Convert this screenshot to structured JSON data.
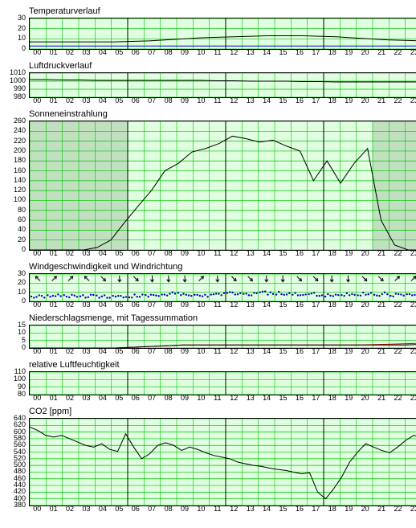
{
  "hours": [
    "00",
    "01",
    "02",
    "03",
    "04",
    "05",
    "06",
    "07",
    "08",
    "09",
    "10",
    "11",
    "12",
    "13",
    "14",
    "15",
    "16",
    "17",
    "18",
    "19",
    "20",
    "21",
    "22",
    "23"
  ],
  "global": {
    "grid_major": "#00c000",
    "grid_minor": "#80e080",
    "bg": "#e0ffe0",
    "shade": "#c0e0c0",
    "sep_x": [
      6,
      12,
      18
    ],
    "sep_color": "#000000",
    "axis_fontsize": 9,
    "title_fontsize": 11,
    "font": "Verdana"
  },
  "panels": [
    {
      "id": "temp",
      "title": "Temperaturverlauf",
      "height": 38,
      "ylim": [
        0,
        30
      ],
      "yticks": [
        0,
        10,
        20,
        30
      ],
      "series": [
        {
          "color": "#000000",
          "width": 1,
          "data": [
            7,
            7,
            7,
            7,
            7,
            7,
            7.5,
            8,
            9,
            10,
            11,
            11.5,
            12,
            12.5,
            13,
            13,
            13,
            12.5,
            12,
            11,
            10,
            9,
            8.5,
            8
          ]
        },
        {
          "color": "#0000d0",
          "width": 1,
          "data": [
            3,
            3,
            3,
            3,
            3,
            3,
            3,
            3,
            3,
            3,
            3,
            3,
            3,
            3,
            3,
            3,
            3,
            3,
            3,
            3,
            3,
            3,
            3,
            3
          ]
        }
      ]
    },
    {
      "id": "press",
      "title": "Luftdruckverlauf",
      "height": 30,
      "ylim": [
        980,
        1010
      ],
      "yticks": [
        980,
        990,
        1000,
        1010
      ],
      "series": [
        {
          "color": "#000000",
          "width": 1,
          "data": [
            1002,
            1002,
            1001.5,
            1001.5,
            1001,
            1001,
            1001,
            1001,
            1001,
            1001,
            1001,
            1000.5,
            1000.5,
            1000,
            1000,
            1000,
            999.5,
            999.5,
            999,
            999,
            999,
            999,
            999,
            999
          ]
        }
      ]
    },
    {
      "id": "solar",
      "title": "Sonneneinstrahlung",
      "height": 160,
      "ylim": [
        0,
        260
      ],
      "yticks": [
        0,
        20,
        40,
        60,
        80,
        100,
        120,
        140,
        160,
        180,
        200,
        220,
        240,
        260
      ],
      "shade": [
        [
          0,
          6
        ],
        [
          21,
          24
        ]
      ],
      "series": [
        {
          "color": "#000000",
          "width": 1,
          "data": [
            0,
            0,
            0,
            0,
            2,
            10,
            45,
            100,
            150,
            185,
            210,
            222,
            225,
            230,
            228,
            225,
            220,
            215,
            195,
            150,
            185,
            60,
            5,
            0
          ],
          "dense": [
            0,
            0,
            0,
            0,
            0,
            5,
            20,
            55,
            88,
            120,
            160,
            175,
            198,
            205,
            215,
            230,
            225,
            218,
            222,
            210,
            200,
            140,
            180,
            135,
            175,
            205,
            60,
            10,
            0,
            0
          ]
        }
      ]
    },
    {
      "id": "wind",
      "title": "Windgeschwindigkeit und Windrichtung",
      "height": 34,
      "ylim": [
        0,
        30
      ],
      "yticks": [
        0,
        10,
        20,
        30
      ],
      "series": [
        {
          "type": "scatter",
          "color": "#0000c0",
          "size": 1.2,
          "data": [
            6,
            7,
            6,
            6,
            5,
            6,
            6,
            7,
            8,
            8,
            7,
            8,
            9,
            8,
            9,
            9,
            8,
            8,
            7,
            7,
            8,
            8,
            7,
            7
          ]
        }
      ],
      "arrows": {
        "y": 25,
        "each_hour": true,
        "color": "#000",
        "dir": [
          315,
          45,
          45,
          315,
          135,
          180,
          135,
          180,
          180,
          180,
          45,
          180,
          135,
          135,
          180,
          180,
          135,
          135,
          180,
          180,
          135,
          135,
          45,
          45
        ]
      }
    },
    {
      "id": "precip",
      "title": "Niederschlagsmenge, mit Tagessummation",
      "height": 28,
      "ylim": [
        0,
        15
      ],
      "yticks": [
        0,
        5,
        10,
        15
      ],
      "series": [
        {
          "color": "#c00000",
          "width": 1,
          "data": [
            0,
            0,
            0,
            0,
            0,
            0,
            0.5,
            1,
            1.5,
            2,
            2,
            2,
            2,
            2,
            2,
            2,
            2,
            2,
            2,
            2,
            2.2,
            2.5,
            2.8,
            3.2
          ]
        },
        {
          "color": "#000000",
          "width": 1,
          "data": [
            0,
            0,
            0,
            0,
            0,
            0,
            0.5,
            1,
            1.5,
            2,
            2,
            2,
            2,
            2,
            2,
            2,
            2,
            2,
            2,
            2,
            2,
            2,
            2,
            2.5
          ]
        }
      ]
    },
    {
      "id": "hum",
      "title": "relative Luftfeuchtigkeit",
      "height": 28,
      "ylim": [
        80,
        110
      ],
      "yticks": [
        80,
        90,
        100,
        110
      ],
      "series": []
    },
    {
      "id": "co2",
      "title": "CO2 [ppm]",
      "height": 108,
      "ylim": [
        380,
        640
      ],
      "yticks": [
        380,
        400,
        420,
        440,
        460,
        480,
        500,
        520,
        540,
        560,
        580,
        600,
        620,
        640
      ],
      "series": [
        {
          "color": "#000000",
          "width": 1,
          "data": [
            615,
            605,
            590,
            585,
            590,
            580,
            570,
            560,
            555,
            565,
            548,
            542,
            595,
            555,
            520,
            535,
            560,
            568,
            560,
            545,
            555,
            548,
            538,
            530,
            525,
            520,
            510,
            505,
            500,
            497,
            492,
            488,
            485,
            480,
            475,
            478,
            420,
            400,
            430,
            465,
            510,
            540,
            565,
            555,
            545,
            538,
            555,
            575,
            590,
            585
          ]
        }
      ]
    }
  ]
}
